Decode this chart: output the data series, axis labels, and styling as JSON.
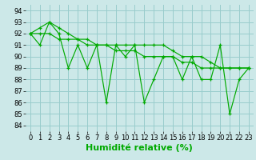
{
  "background_color": "#cce8e8",
  "grid_color": "#99cccc",
  "line_color": "#00aa00",
  "xlabel": "Humidité relative (%)",
  "xlabel_fontsize": 8,
  "tick_fontsize": 6,
  "xlim": [
    -0.5,
    23.5
  ],
  "ylim": [
    83.5,
    94.5
  ],
  "yticks": [
    84,
    85,
    86,
    87,
    88,
    89,
    90,
    91,
    92,
    93,
    94
  ],
  "xticks": [
    0,
    1,
    2,
    3,
    4,
    5,
    6,
    7,
    8,
    9,
    10,
    11,
    12,
    13,
    14,
    15,
    16,
    17,
    18,
    19,
    20,
    21,
    22,
    23
  ],
  "series": [
    [
      92,
      91,
      93,
      92,
      89,
      91,
      89,
      91,
      86,
      91,
      90,
      91,
      86,
      88,
      90,
      90,
      88,
      90,
      88,
      88,
      91,
      85,
      88,
      89
    ],
    [
      92,
      92,
      92,
      91.5,
      91.5,
      91.5,
      91,
      91,
      91,
      90.5,
      90.5,
      90.5,
      90,
      90,
      90,
      90,
      89.5,
      89.5,
      89,
      89,
      89,
      89,
      89,
      89
    ],
    [
      92,
      92.5,
      93,
      92.5,
      92,
      91.5,
      91.5,
      91,
      91,
      91,
      91,
      91,
      91,
      91,
      91,
      90.5,
      90,
      90,
      90,
      89.5,
      89,
      89,
      89,
      89
    ]
  ]
}
